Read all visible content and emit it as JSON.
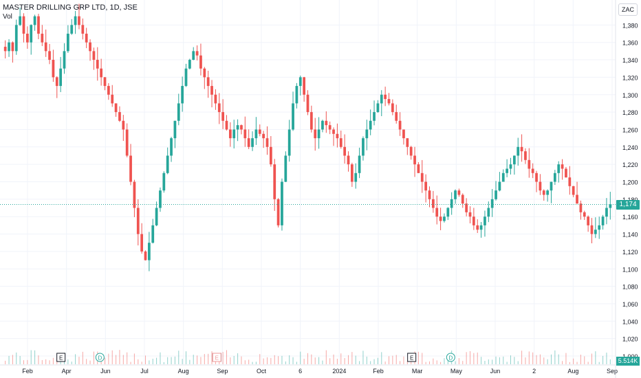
{
  "header": {
    "title": "MASTER DRILLING GRP LTD, 1D, JSE",
    "volume_label": "Vol",
    "currency": "ZAC"
  },
  "price_tag": "1,174",
  "volume_tag": "5.514K",
  "colors": {
    "up": "#26a69a",
    "down": "#ef5350",
    "grid": "#f0f3fa",
    "axis_text": "#131722"
  },
  "chart_data": {
    "type": "candlestick",
    "y_range": [
      1000,
      1400
    ],
    "y_ticks": [
      "1,000",
      "1,020",
      "1,040",
      "1,060",
      "1,080",
      "1,100",
      "1,120",
      "1,140",
      "1,160",
      "1,180",
      "1,200",
      "1,220",
      "1,240",
      "1,260",
      "1,280",
      "1,300",
      "1,320",
      "1,340",
      "1,360",
      "1,380"
    ],
    "x_ticks": [
      "Feb",
      "Apr",
      "Jun",
      "Jul",
      "Aug",
      "Sep",
      "Oct",
      "6",
      "2024",
      "Feb",
      "Mar",
      "May",
      "Jun",
      "2",
      "Aug",
      "Sep"
    ],
    "last_price": 1174,
    "events": [
      {
        "type": "E",
        "x_tick": "Apr"
      },
      {
        "type": "D",
        "x_tick": "Jun"
      },
      {
        "type": "E",
        "x_tick": "Sep"
      },
      {
        "type": "E",
        "x_tick": "Mar"
      },
      {
        "type": "D",
        "x_tick": "May"
      },
      {
        "type": "E",
        "x_tick": "Sep",
        "faded": true
      }
    ],
    "close_series": [
      1350,
      1360,
      1350,
      1380,
      1390,
      1370,
      1360,
      1380,
      1390,
      1370,
      1360,
      1350,
      1340,
      1320,
      1310,
      1330,
      1350,
      1370,
      1380,
      1390,
      1380,
      1370,
      1360,
      1350,
      1340,
      1330,
      1320,
      1310,
      1300,
      1290,
      1280,
      1270,
      1260,
      1230,
      1200,
      1170,
      1140,
      1120,
      1110,
      1130,
      1150,
      1170,
      1190,
      1210,
      1230,
      1250,
      1270,
      1290,
      1310,
      1330,
      1340,
      1350,
      1345,
      1330,
      1320,
      1310,
      1300,
      1290,
      1280,
      1270,
      1260,
      1250,
      1260,
      1265,
      1260,
      1250,
      1240,
      1250,
      1260,
      1255,
      1250,
      1240,
      1220,
      1180,
      1150,
      1200,
      1230,
      1260,
      1290,
      1310,
      1320,
      1300,
      1280,
      1260,
      1250,
      1260,
      1270,
      1265,
      1260,
      1255,
      1250,
      1240,
      1230,
      1220,
      1200,
      1210,
      1230,
      1250,
      1260,
      1270,
      1280,
      1290,
      1300,
      1295,
      1290,
      1280,
      1270,
      1260,
      1250,
      1240,
      1230,
      1220,
      1210,
      1200,
      1190,
      1180,
      1170,
      1160,
      1155,
      1160,
      1170,
      1180,
      1190,
      1185,
      1175,
      1165,
      1160,
      1150,
      1145,
      1150,
      1160,
      1170,
      1180,
      1190,
      1200,
      1210,
      1215,
      1220,
      1230,
      1240,
      1235,
      1225,
      1215,
      1210,
      1200,
      1190,
      1185,
      1190,
      1200,
      1210,
      1220,
      1215,
      1205,
      1195,
      1185,
      1175,
      1165,
      1160,
      1150,
      1140,
      1145,
      1150,
      1160,
      1170,
      1174
    ]
  }
}
